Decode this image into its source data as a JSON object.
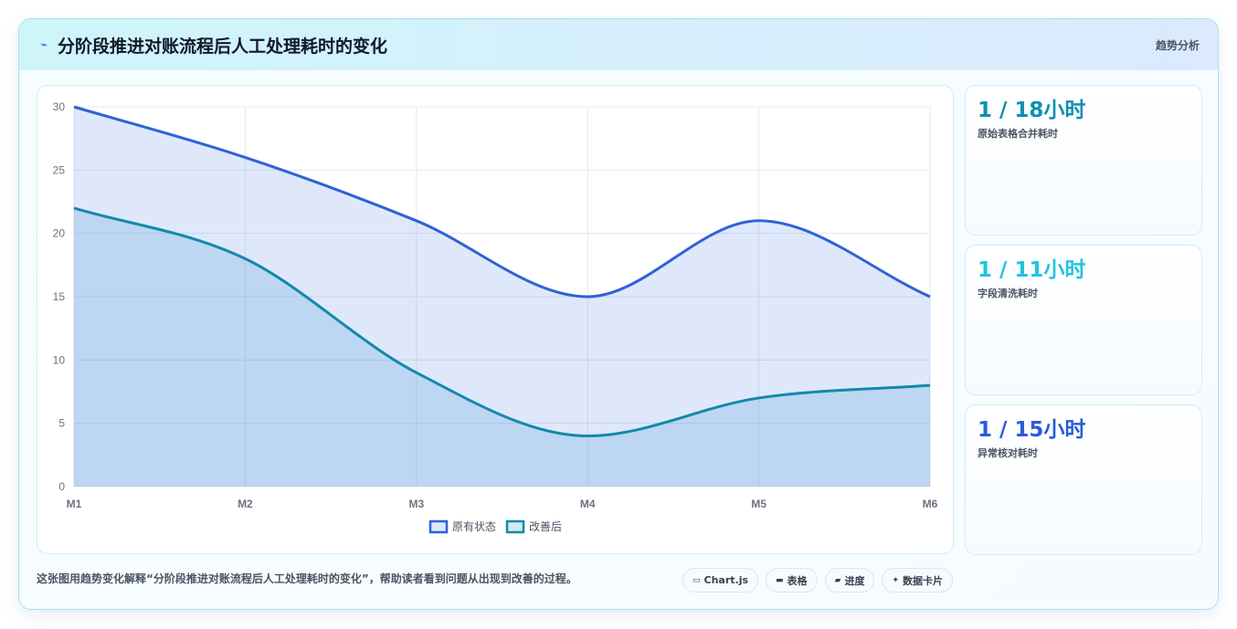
{
  "header": {
    "title": "分阶段推进对账流程后人工处理耗时的变化",
    "right_label": "趋势分析",
    "icon": "sparkline-icon"
  },
  "chart_data": {
    "type": "area",
    "categories": [
      "M1",
      "M2",
      "M3",
      "M4",
      "M5",
      "M6"
    ],
    "series": [
      {
        "name": "原有状态",
        "values": [
          30,
          26,
          21,
          15,
          21,
          15
        ],
        "color": "#2f62d6",
        "fill": "rgba(59,110,230,0.16)"
      },
      {
        "name": "改善后",
        "values": [
          22,
          18,
          9,
          4,
          7,
          8
        ],
        "color": "#1289ab",
        "fill": "rgba(100,170,220,0.28)"
      }
    ],
    "ylim": [
      0,
      30
    ],
    "yticks": [
      0,
      5,
      10,
      15,
      20,
      25,
      30
    ],
    "grid": true,
    "legend": "bottom",
    "title": "",
    "xlabel": "",
    "ylabel": ""
  },
  "stats": [
    {
      "value": "1 / 18小时",
      "label": "原始表格合并耗时",
      "color": "#0e8fb0"
    },
    {
      "value": "1 / 11小时",
      "label": "字段清洗耗时",
      "color": "#22c3e0"
    },
    {
      "value": "1 / 15小时",
      "label": "异常核对耗时",
      "color": "#2a5bd8"
    }
  ],
  "footer": {
    "text": "这张图用趋势变化解释“分阶段推进对账流程后人工处理耗时的变化”，帮助读者看到问题从出现到改善的过程。"
  },
  "chips": [
    {
      "icon": "▭",
      "label": "Chart.js"
    },
    {
      "icon": "▬",
      "label": "表格"
    },
    {
      "icon": "▰",
      "label": "进度"
    },
    {
      "icon": "✦",
      "label": "数据卡片"
    }
  ]
}
